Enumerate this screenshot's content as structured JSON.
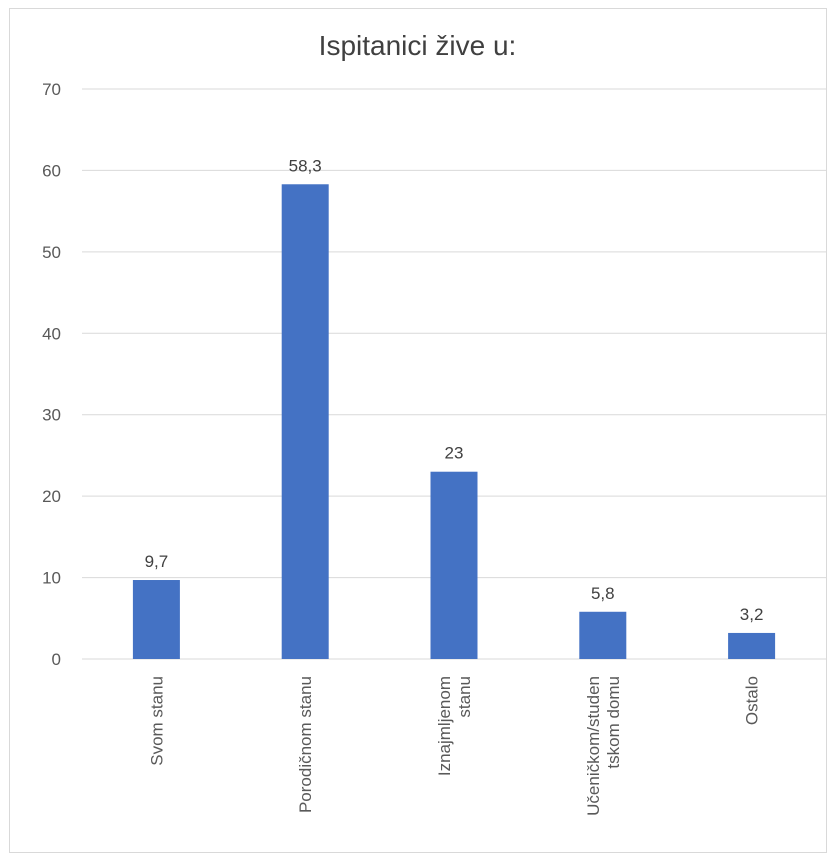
{
  "chart_data": {
    "type": "bar",
    "title": "Ispitanici žive u:",
    "xlabel": "",
    "ylabel": "",
    "categories": [
      [
        "Svom stanu"
      ],
      [
        "Porodičnom stanu"
      ],
      [
        "Iznajmljenom",
        "stanu"
      ],
      [
        "Učeničkom/studen",
        "tskom domu"
      ],
      [
        "Ostalo"
      ]
    ],
    "values": [
      9.7,
      58.3,
      23,
      5.8,
      3.2
    ],
    "data_labels": [
      "9,7",
      "58,3",
      "23",
      "5,8",
      "3,2"
    ],
    "ylim": [
      0,
      70
    ],
    "yticks": [
      0,
      10,
      20,
      30,
      40,
      50,
      60,
      70
    ],
    "grid": true,
    "legend": "none",
    "bar_color": "#4472c4",
    "grid_color": "#d9d9d9"
  }
}
